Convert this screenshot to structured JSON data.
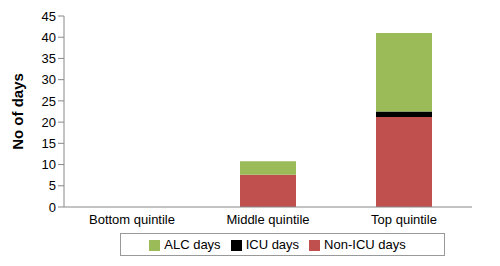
{
  "chart_data": {
    "type": "bar",
    "stacked": true,
    "y_label": "No of days",
    "categories": [
      "Bottom quintile",
      "Middle quintile",
      "Top quintile"
    ],
    "series": [
      {
        "name": "Non-ICU days",
        "color": "#c0504d",
        "values": [
          0,
          7.6,
          21.2
        ]
      },
      {
        "name": "ICU days",
        "color": "#000000",
        "values": [
          0,
          0,
          1.3
        ]
      },
      {
        "name": "ALC days",
        "color": "#9bbb59",
        "values": [
          0,
          3.2,
          18.5
        ]
      }
    ],
    "ylim": [
      0,
      45
    ],
    "yticks": [
      0,
      5,
      10,
      15,
      20,
      25,
      30,
      35,
      40,
      45
    ],
    "legend": "bottom",
    "grid": false
  }
}
